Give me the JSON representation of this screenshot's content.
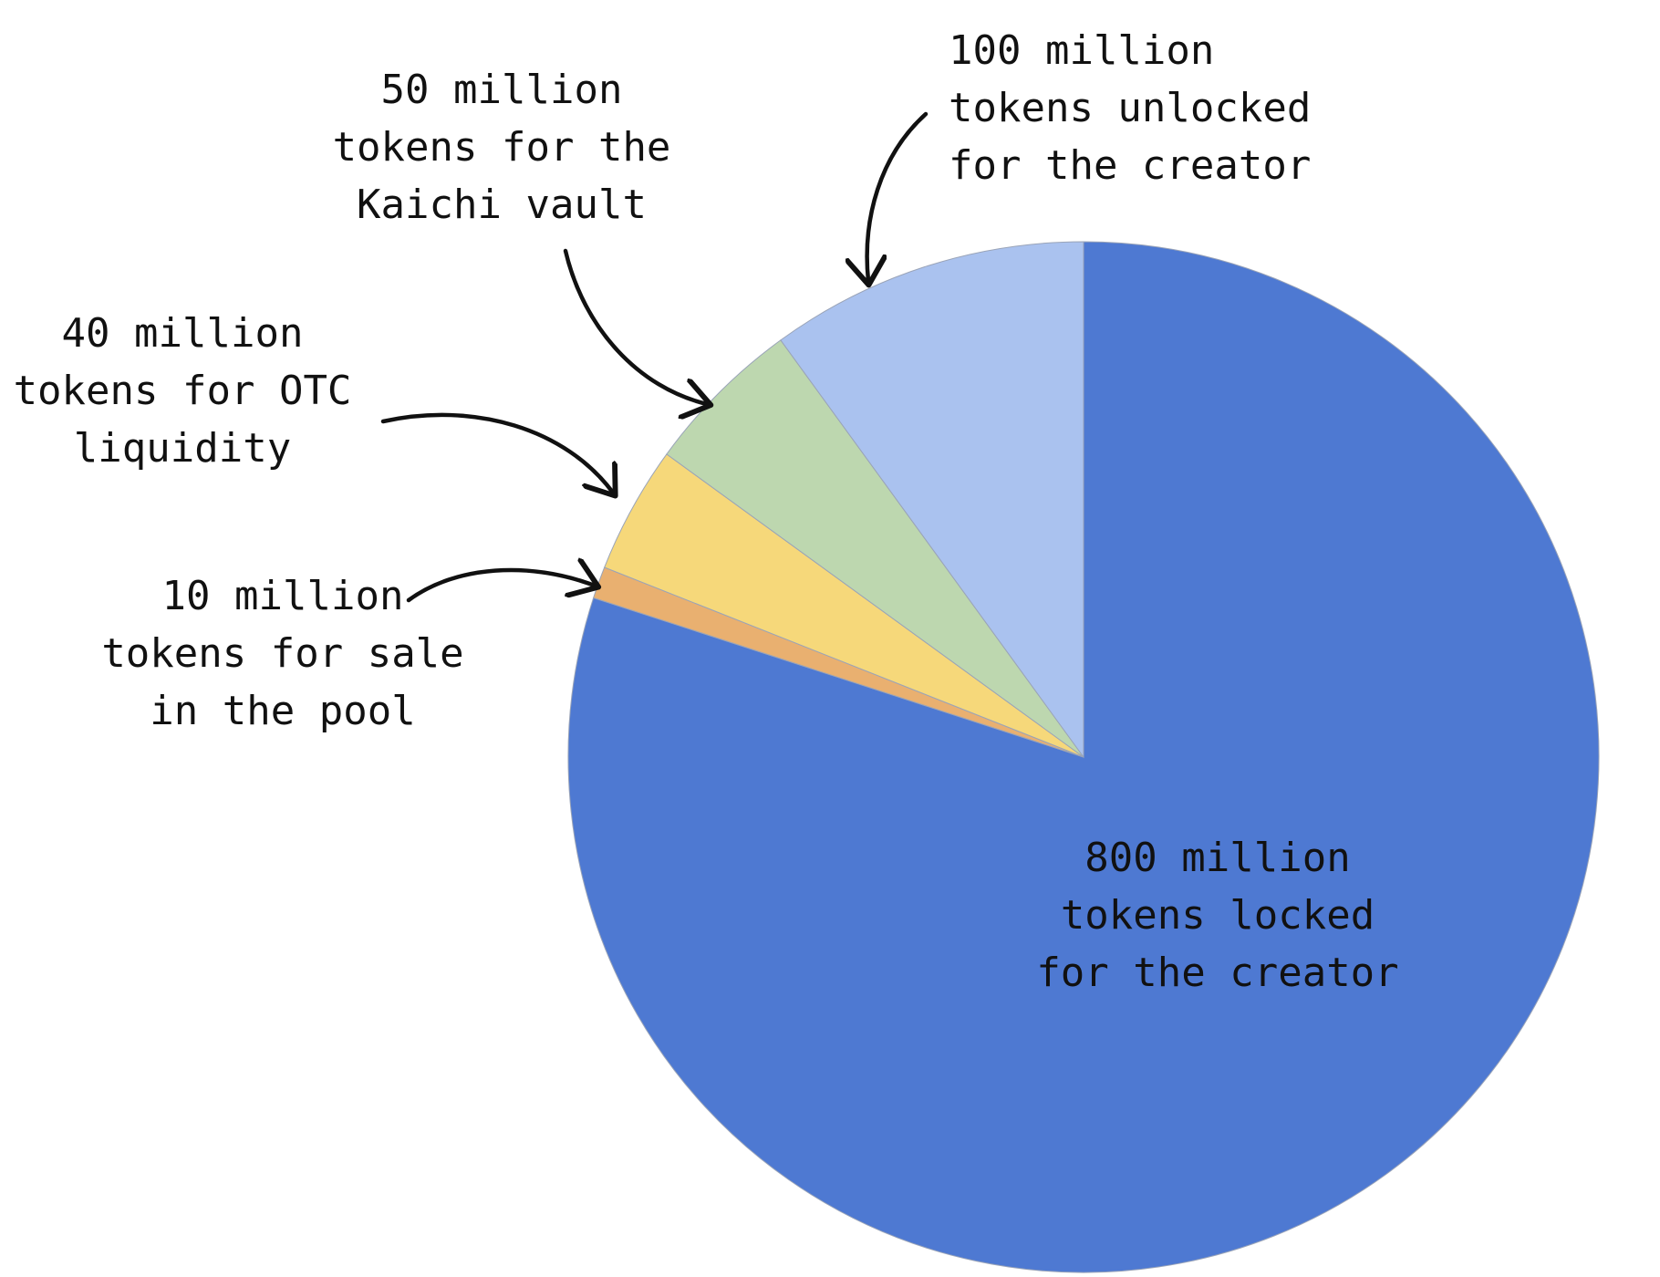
{
  "chart_data": {
    "type": "pie",
    "title": "",
    "start_angle_deg": 0,
    "direction": "clockwise",
    "slices": [
      {
        "value": 800,
        "color": "#4e79d2",
        "label_lines": [
          "800 million",
          "tokens locked",
          "for the creator"
        ]
      },
      {
        "value": 10,
        "color": "#e9b070",
        "label_lines": [
          "10 million",
          "tokens for sale",
          "in the pool"
        ]
      },
      {
        "value": 40,
        "color": "#f6d87a",
        "label_lines": [
          "40 million",
          "tokens for OTC",
          "liquidity"
        ]
      },
      {
        "value": 50,
        "color": "#bdd7af",
        "label_lines": [
          "50 million",
          "tokens for the",
          "Kaichi vault"
        ]
      },
      {
        "value": 100,
        "color": "#aac2ef",
        "label_lines": [
          "100 million",
          "tokens unlocked",
          "for the creator"
        ]
      }
    ]
  }
}
